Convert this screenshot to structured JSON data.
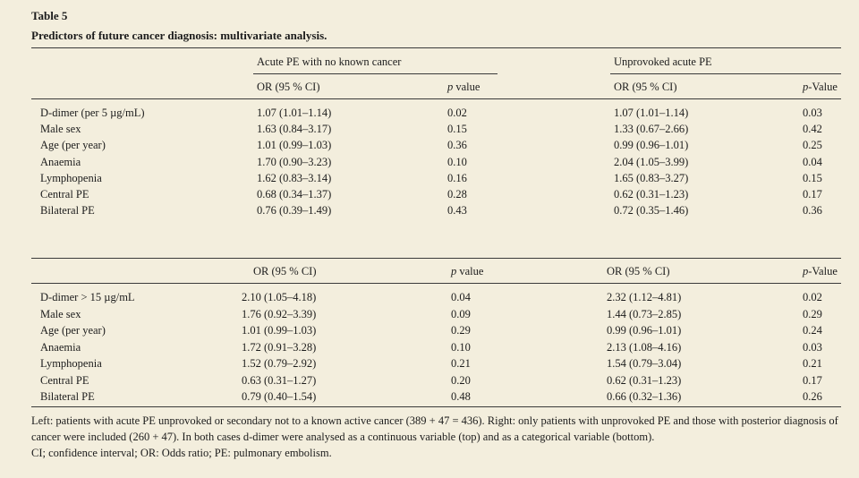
{
  "table": {
    "number": "Table 5",
    "caption": "Predictors of future cancer diagnosis: multivariate analysis."
  },
  "top": {
    "group_left": "Acute PE with no known cancer",
    "group_right": "Unprovoked acute PE",
    "col_or_left": "OR (95 % CI)",
    "col_p_left_italic": "p",
    "col_p_left_rest": " value",
    "col_or_right": "OR (95 % CI)",
    "col_p_right_italic": "p",
    "col_p_right_rest": "-Value",
    "rows": [
      {
        "label": "D-dimer (per 5 µg/mL)",
        "or1": "1.07 (1.01–1.14)",
        "p1": "0.02",
        "or2": "1.07 (1.01–1.14)",
        "p2": "0.03"
      },
      {
        "label": "Male sex",
        "or1": "1.63 (0.84–3.17)",
        "p1": "0.15",
        "or2": "1.33 (0.67–2.66)",
        "p2": "0.42"
      },
      {
        "label": "Age (per year)",
        "or1": "1.01 (0.99–1.03)",
        "p1": "0.36",
        "or2": "0.99 (0.96–1.01)",
        "p2": "0.25"
      },
      {
        "label": "Anaemia",
        "or1": "1.70 (0.90–3.23)",
        "p1": "0.10",
        "or2": "2.04 (1.05–3.99)",
        "p2": "0.04"
      },
      {
        "label": "Lymphopenia",
        "or1": "1.62 (0.83–3.14)",
        "p1": "0.16",
        "or2": "1.65 (0.83–3.27)",
        "p2": "0.15"
      },
      {
        "label": "Central PE",
        "or1": "0.68 (0.34–1.37)",
        "p1": "0.28",
        "or2": "0.62 (0.31–1.23)",
        "p2": "0.17"
      },
      {
        "label": "Bilateral PE",
        "or1": "0.76 (0.39–1.49)",
        "p1": "0.43",
        "or2": "0.72 (0.35–1.46)",
        "p2": "0.36"
      }
    ]
  },
  "bottom": {
    "col_or_left": "OR (95 % CI)",
    "col_p_left_italic": "p",
    "col_p_left_rest": " value",
    "col_or_right": "OR (95 % CI)",
    "col_p_right_italic": "p",
    "col_p_right_rest": "-Value",
    "rows": [
      {
        "label": "D-dimer > 15 µg/mL",
        "or1": "2.10 (1.05–4.18)",
        "p1": "0.04",
        "or2": "2.32 (1.12–4.81)",
        "p2": "0.02"
      },
      {
        "label": "Male sex",
        "or1": "1.76 (0.92–3.39)",
        "p1": "0.09",
        "or2": "1.44 (0.73–2.85)",
        "p2": "0.29"
      },
      {
        "label": "Age (per year)",
        "or1": "1.01 (0.99–1.03)",
        "p1": "0.29",
        "or2": "0.99 (0.96–1.01)",
        "p2": "0.24"
      },
      {
        "label": "Anaemia",
        "or1": "1.72 (0.91–3.28)",
        "p1": "0.10",
        "or2": "2.13 (1.08–4.16)",
        "p2": "0.03"
      },
      {
        "label": "Lymphopenia",
        "or1": "1.52 (0.79–2.92)",
        "p1": "0.21",
        "or2": "1.54 (0.79–3.04)",
        "p2": "0.21"
      },
      {
        "label": "Central PE",
        "or1": "0.63 (0.31–1.27)",
        "p1": "0.20",
        "or2": "0.62 (0.31–1.23)",
        "p2": "0.17"
      },
      {
        "label": "Bilateral PE",
        "or1": "0.79 (0.40–1.54)",
        "p1": "0.48",
        "or2": "0.66 (0.32–1.36)",
        "p2": "0.26"
      }
    ]
  },
  "footnotes": [
    "Left: patients with acute PE unprovoked or secondary not to a known active cancer (389 + 47 = 436). Right: only patients with unprovoked PE and those with posterior diagnosis of cancer were included (260 + 47). In both cases d-dimer were analysed as a continuous variable (top) and as a categorical variable (bottom).",
    "CI; confidence interval; OR: Odds ratio; PE: pulmonary embolism."
  ]
}
